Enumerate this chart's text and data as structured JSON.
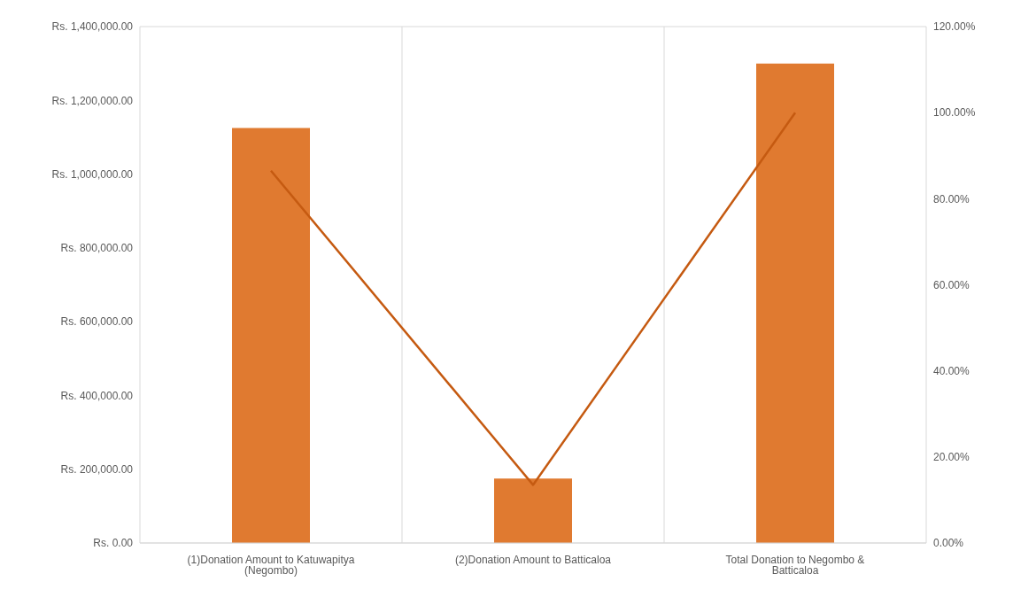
{
  "chart_data": {
    "type": "bar",
    "categories": [
      "(1)Donation Amount to Katuwapitya (Negombo)",
      "(2)Donation Amount to Batticaloa",
      "Total Donation to Negombo & Batticaloa"
    ],
    "series": [
      {
        "color": "#e07a30",
        "values": [
          1125000,
          175000,
          1300000
        ]
      },
      {
        "type": "line",
        "axis": "y2",
        "color": "#c55a11",
        "values": [
          86.5,
          13.5,
          100
        ]
      }
    ],
    "ylim": [
      0,
      1400000
    ],
    "yticks": [
      {
        "value": 0,
        "label": "Rs. 0.00"
      },
      {
        "value": 200000,
        "label": "Rs. 200,000.00"
      },
      {
        "value": 400000,
        "label": "Rs. 400,000.00"
      },
      {
        "value": 600000,
        "label": "Rs. 600,000.00"
      },
      {
        "value": 800000,
        "label": "Rs. 800,000.00"
      },
      {
        "value": 1000000,
        "label": "Rs. 1,000,000.00"
      },
      {
        "value": 1200000,
        "label": "Rs. 1,200,000.00"
      },
      {
        "value": 1400000,
        "label": "Rs. 1,400,000.00"
      }
    ],
    "y2lim": [
      0,
      120
    ],
    "y2ticks": [
      {
        "value": 0,
        "label": "0.00%"
      },
      {
        "value": 20,
        "label": "20.00%"
      },
      {
        "value": 40,
        "label": "40.00%"
      },
      {
        "value": 60,
        "label": "60.00%"
      },
      {
        "value": 80,
        "label": "80.00%"
      },
      {
        "value": 100,
        "label": "100.00%"
      },
      {
        "value": 120,
        "label": "120.00%"
      }
    ],
    "grid": true,
    "marker": "none"
  }
}
